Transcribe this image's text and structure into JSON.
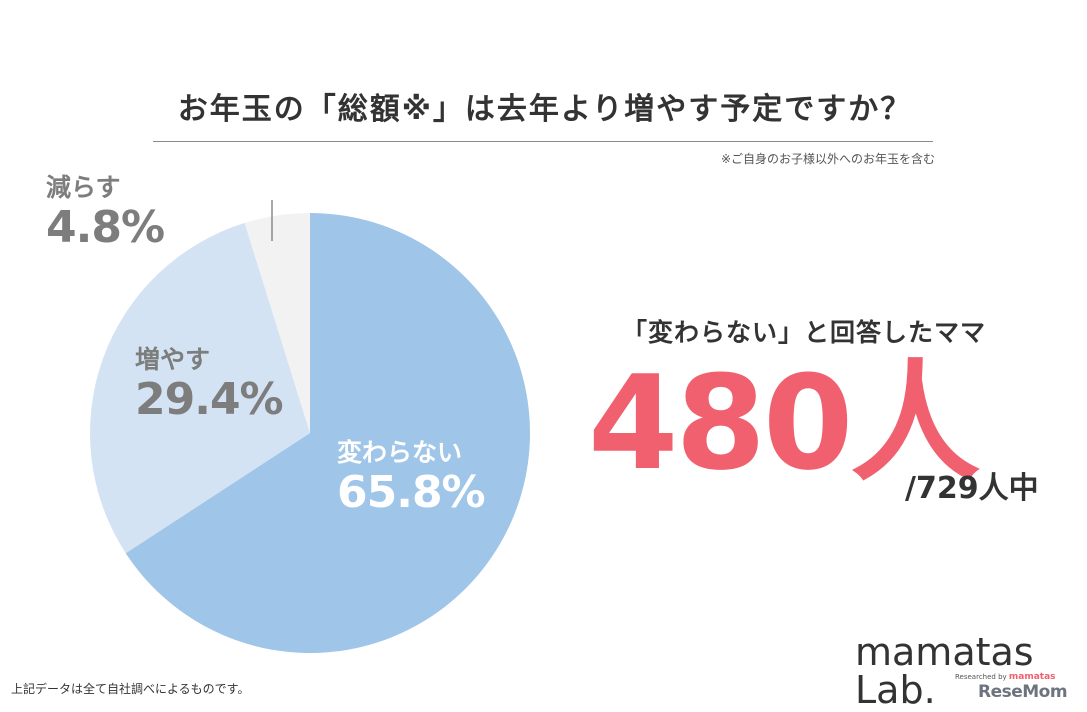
{
  "header": {
    "title": "お年玉の「総額※」は去年より増やす予定ですか？",
    "footnote": "※ご自身のお子様以外へのお年玉を含む"
  },
  "chart_data": {
    "type": "pie",
    "title": "お年玉の「総額※」は去年より増やす予定ですか？",
    "slices": [
      {
        "label": "変わらない",
        "value": 65.8,
        "display": "65.8%",
        "color": "#9fc5e8"
      },
      {
        "label": "増やす",
        "value": 29.4,
        "display": "29.4%",
        "color": "#d3e3f4"
      },
      {
        "label": "減らす",
        "value": 4.8,
        "display": "4.8%",
        "color": "#f2f2f2"
      }
    ],
    "start": "12 o'clock",
    "direction": "clockwise"
  },
  "callout": {
    "caption": "「変わらない」と回答したママ",
    "count": "480人",
    "total": "/729人中"
  },
  "footer": {
    "source": "上記データは全て自社調べによるものです。",
    "brand": "mamatas Lab.",
    "brand_sub_prefix": "Researched by",
    "brand_sub_name": "mamatas",
    "watermark": "ReseMom"
  },
  "colors": {
    "accent": "#f0606f",
    "text": "#333333",
    "label_gray": "#7d7d7d"
  }
}
